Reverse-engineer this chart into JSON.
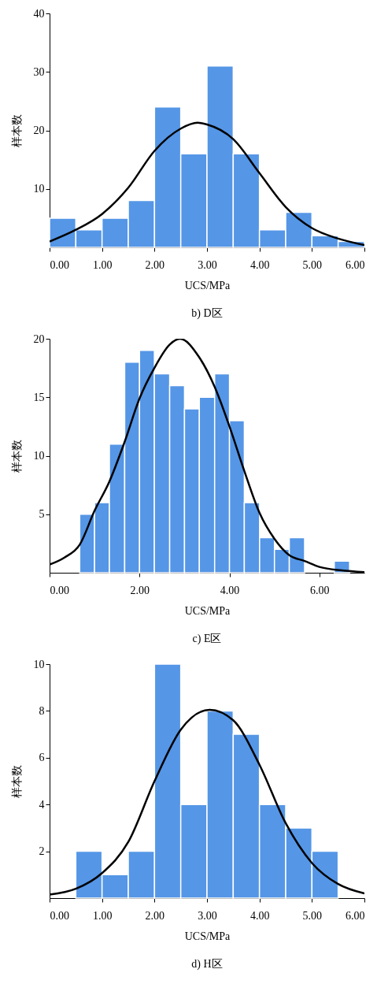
{
  "chart_data": [
    {
      "type": "histogram",
      "title": "b) D区",
      "xlabel": "UCS/MPa",
      "ylabel": "样本数",
      "bins": [
        0,
        0.5,
        1,
        1.5,
        2,
        2.5,
        3,
        3.5,
        4,
        4.5,
        5,
        5.5,
        6
      ],
      "series": [
        {
          "color": "#5596e6",
          "values": [
            5,
            3,
            5,
            8,
            24,
            16,
            31,
            16,
            3,
            6,
            2,
            1
          ]
        },
        {
          "type": "line",
          "color": "#000000",
          "x": [
            0,
            0.5,
            1,
            1.5,
            2,
            2.5,
            2.82,
            3,
            3.5,
            4,
            4.5,
            5,
            5.5,
            6
          ],
          "values": [
            1.0,
            3.0,
            5.7,
            10.2,
            16.5,
            20.3,
            21.3,
            21.0,
            18.5,
            12.7,
            6.9,
            3.3,
            1.5,
            0.4
          ]
        }
      ],
      "xlim": [
        0,
        6
      ],
      "xticks": [
        {
          "value": 0,
          "label": "0.00"
        },
        {
          "value": 1,
          "label": "1.00"
        },
        {
          "value": 2,
          "label": "2.00"
        },
        {
          "value": 3,
          "label": "3.00"
        },
        {
          "value": 4,
          "label": "4.00"
        },
        {
          "value": 5,
          "label": "5.00"
        },
        {
          "value": 6,
          "label": "6.00"
        }
      ],
      "ylim": [
        0,
        40
      ],
      "yticks": [
        10,
        20,
        30,
        40
      ]
    },
    {
      "type": "histogram",
      "title": "c) E区",
      "xlabel": "UCS/MPa",
      "ylabel": "样本数",
      "bins": [
        0.67,
        1,
        1.33,
        1.67,
        2,
        2.33,
        2.67,
        3,
        3.33,
        3.67,
        4,
        4.33,
        4.67,
        5,
        5.33,
        5.67,
        6.33,
        6.67
      ],
      "series": [
        {
          "color": "#5596e6",
          "values": [
            5,
            6,
            11,
            18,
            19,
            17,
            16,
            14,
            15,
            17,
            13,
            6,
            3,
            2,
            3,
            0,
            1
          ]
        },
        {
          "type": "line",
          "color": "#000000",
          "x": [
            0,
            0.33,
            0.67,
            1,
            1.33,
            1.67,
            2,
            2.33,
            2.67,
            2.9,
            3.33,
            3.67,
            4,
            4.33,
            4.67,
            5,
            5.33,
            5.67,
            6,
            6.5,
            7
          ],
          "values": [
            0.7,
            1.3,
            2.4,
            5.3,
            7.8,
            11.2,
            14.9,
            17.5,
            19.5,
            20,
            18.4,
            15.9,
            12.5,
            8.7,
            5.1,
            2.9,
            1.5,
            1.0,
            0.5,
            0.2,
            0.05
          ]
        }
      ],
      "xlim": [
        0,
        7
      ],
      "xticks": [
        {
          "value": 0,
          "label": "0.00"
        },
        {
          "value": 2,
          "label": "2.00"
        },
        {
          "value": 4,
          "label": "4.00"
        },
        {
          "value": 6,
          "label": "6.00"
        }
      ],
      "ylim": [
        0,
        20
      ],
      "yticks": [
        5,
        10,
        15,
        20
      ]
    },
    {
      "type": "histogram",
      "title": "d) H区",
      "xlabel": "UCS/MPa",
      "ylabel": "样本数",
      "bins": [
        0.5,
        1,
        1.5,
        2,
        2.5,
        3,
        3.5,
        4,
        4.5,
        5,
        5.5
      ],
      "series": [
        {
          "color": "#5596e6",
          "values": [
            2,
            1,
            2,
            10,
            4,
            8,
            7,
            4,
            3,
            2
          ]
        },
        {
          "type": "line",
          "color": "#000000",
          "x": [
            0,
            0.5,
            1,
            1.5,
            2,
            2.5,
            3.05,
            3.5,
            4,
            4.5,
            5,
            5.5,
            6
          ],
          "values": [
            0.15,
            0.4,
            1.07,
            2.4,
            5.0,
            7.2,
            8.05,
            7.6,
            5.7,
            3.2,
            1.5,
            0.6,
            0.2
          ]
        }
      ],
      "xlim": [
        0,
        6
      ],
      "xticks": [
        {
          "value": 0,
          "label": "0.00"
        },
        {
          "value": 1,
          "label": "1.00"
        },
        {
          "value": 2,
          "label": "2.00"
        },
        {
          "value": 3,
          "label": "3.00"
        },
        {
          "value": 4,
          "label": "4.00"
        },
        {
          "value": 5,
          "label": "5.00"
        },
        {
          "value": 6,
          "label": "6.00"
        }
      ],
      "ylim": [
        0,
        10
      ],
      "yticks": [
        2,
        4,
        6,
        8,
        10
      ]
    }
  ]
}
